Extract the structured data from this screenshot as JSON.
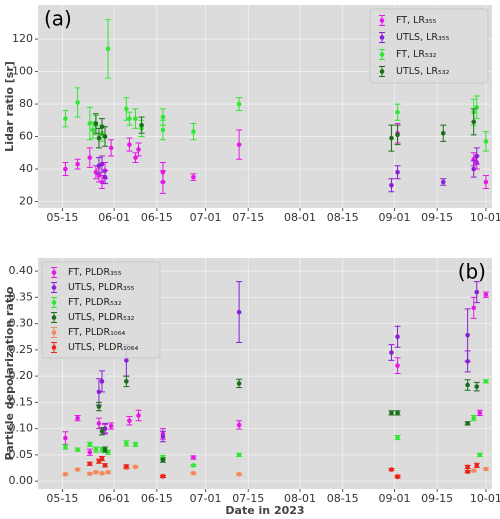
{
  "chart_data": [
    {
      "type": "scatter",
      "panel_label": "(a)",
      "ylabel": "Lidar ratio [sr]",
      "xlim": [
        "05-07",
        "10-03"
      ],
      "xticks": [
        "05-15",
        "06-01",
        "06-15",
        "07-01",
        "07-15",
        "08-01",
        "08-15",
        "09-01",
        "09-15",
        "10-01"
      ],
      "ylim": [
        16,
        141
      ],
      "yticks": [
        20,
        40,
        60,
        80,
        100,
        120
      ],
      "grid": true,
      "legend": "upper right",
      "series": [
        {
          "name": "FT, LR₃₅₅",
          "color": "#e619e6",
          "x": [
            "05-16",
            "05-20",
            "05-24",
            "05-26",
            "05-27",
            "05-28",
            "05-29",
            "05-31",
            "06-06",
            "06-08",
            "06-09",
            "06-17",
            "06-17",
            "06-27",
            "07-12",
            "09-02",
            "09-27",
            "09-28",
            "10-01"
          ],
          "values": [
            40,
            43,
            47,
            38,
            36,
            32,
            39,
            53,
            55,
            47,
            52,
            38,
            32,
            35,
            55,
            62,
            46,
            44,
            32
          ],
          "errors": [
            4,
            3,
            6,
            4,
            4,
            4,
            5,
            5,
            4,
            3,
            4,
            6,
            7,
            2,
            9,
            6,
            4,
            4,
            4
          ]
        },
        {
          "name": "UTLS, LR₃₅₅",
          "color": "#8a1fd6",
          "x": [
            "05-27",
            "05-28",
            "05-29",
            "08-31",
            "09-02",
            "09-17",
            "09-27",
            "09-28"
          ],
          "values": [
            42,
            43,
            35,
            30,
            38,
            32,
            40,
            48
          ],
          "errors": [
            5,
            5,
            4,
            4,
            4,
            2,
            5,
            5
          ]
        },
        {
          "name": "FT, LR₅₃₂",
          "color": "#33e633",
          "x": [
            "05-16",
            "05-20",
            "05-24",
            "05-25",
            "05-26",
            "05-28",
            "05-30",
            "06-05",
            "06-06",
            "06-08",
            "06-10",
            "06-17",
            "06-17",
            "06-27",
            "07-12",
            "09-02",
            "09-27",
            "09-28",
            "10-01"
          ],
          "values": [
            71,
            81,
            68,
            64,
            67,
            62,
            114,
            77,
            71,
            71,
            65,
            72,
            64,
            63,
            80,
            75,
            75,
            78,
            57
          ],
          "errors": [
            5,
            9,
            10,
            5,
            6,
            5,
            18,
            7,
            4,
            6,
            5,
            5,
            6,
            5,
            4,
            5,
            8,
            7,
            6
          ]
        },
        {
          "name": "UTLS, LR₅₃₂",
          "color": "#1a6e1a",
          "x": [
            "05-26",
            "05-27",
            "05-28",
            "05-29",
            "06-10",
            "08-31",
            "09-02",
            "09-17",
            "09-27"
          ],
          "values": [
            68,
            59,
            66,
            60,
            67,
            59,
            61,
            62,
            69
          ],
          "errors": [
            6,
            6,
            5,
            6,
            5,
            8,
            6,
            5,
            8
          ]
        }
      ]
    },
    {
      "type": "scatter",
      "panel_label": "(b)",
      "ylabel": "Particle depolarization ratio",
      "xlabel": "Date in 2023",
      "xlim": [
        "05-07",
        "10-03"
      ],
      "xticks": [
        "05-15",
        "06-01",
        "06-15",
        "07-01",
        "07-15",
        "08-01",
        "08-15",
        "09-01",
        "09-15",
        "10-01"
      ],
      "ylim": [
        -0.015,
        0.425
      ],
      "yticks": [
        {
          "value": 0,
          "label": "0.00"
        },
        {
          "value": 0.05,
          "label": "0.05"
        },
        {
          "value": 0.1,
          "label": "0.10"
        },
        {
          "value": 0.15,
          "label": "0.15"
        },
        {
          "value": 0.2,
          "label": "0.20"
        },
        {
          "value": 0.25,
          "label": "0.25"
        },
        {
          "value": 0.3,
          "label": "0.30"
        },
        {
          "value": 0.35,
          "label": "0.35"
        },
        {
          "value": 0.4,
          "label": "0.40"
        }
      ],
      "grid": true,
      "legend": "upper left",
      "series": [
        {
          "name": "FT, PLDR₃₅₅",
          "color": "#e619e6",
          "x": [
            "05-16",
            "05-20",
            "05-24",
            "05-27",
            "05-29",
            "05-31",
            "06-06",
            "06-09",
            "06-17",
            "06-27",
            "07-12",
            "09-02",
            "09-27",
            "09-29",
            "10-01"
          ],
          "values": [
            0.082,
            0.12,
            0.055,
            0.11,
            0.1,
            0.105,
            0.115,
            0.125,
            0.09,
            0.045,
            0.107,
            0.22,
            0.33,
            0.13,
            0.355
          ],
          "errors": [
            0.012,
            0.005,
            0.006,
            0.01,
            0.008,
            0.006,
            0.008,
            0.01,
            0.01,
            0.003,
            0.008,
            0.015,
            0.02,
            0.005,
            0.005
          ]
        },
        {
          "name": "UTLS, PLDR₃₅₅",
          "color": "#8a1fd6",
          "x": [
            "05-27",
            "05-28",
            "05-29",
            "06-05",
            "06-17",
            "07-12",
            "08-31",
            "09-02",
            "09-25",
            "09-25",
            "09-28"
          ],
          "values": [
            0.17,
            0.19,
            0.1,
            0.23,
            0.085,
            0.322,
            0.245,
            0.275,
            0.228,
            0.278,
            0.36
          ],
          "errors": [
            0.025,
            0.02,
            0.01,
            0.03,
            0.01,
            0.058,
            0.015,
            0.02,
            0.02,
            0.05,
            0.02
          ]
        },
        {
          "name": "FT, PLDR₅₃₂",
          "color": "#33e633",
          "x": [
            "05-16",
            "05-20",
            "05-24",
            "05-26",
            "05-28",
            "05-30",
            "06-05",
            "06-08",
            "06-17",
            "06-27",
            "07-12",
            "09-02",
            "09-27",
            "09-29",
            "10-01"
          ],
          "values": [
            0.065,
            0.06,
            0.07,
            0.06,
            0.06,
            0.055,
            0.072,
            0.07,
            0.045,
            0.03,
            0.05,
            0.083,
            0.12,
            0.05,
            0.19
          ],
          "errors": [
            0.004,
            0.003,
            0.004,
            0.005,
            0.004,
            0.004,
            0.005,
            0.004,
            0.004,
            0.002,
            0.003,
            0.004,
            0.005,
            0.003,
            0.003
          ]
        },
        {
          "name": "UTLS, PLDR₅₃₂",
          "color": "#1a6e1a",
          "x": [
            "05-27",
            "05-28",
            "05-29",
            "06-05",
            "06-17",
            "07-12",
            "08-31",
            "09-02",
            "09-25",
            "09-25",
            "09-28"
          ],
          "values": [
            0.142,
            0.095,
            0.06,
            0.19,
            0.04,
            0.186,
            0.13,
            0.13,
            0.11,
            0.183,
            0.18
          ],
          "errors": [
            0.008,
            0.007,
            0.005,
            0.01,
            0.004,
            0.008,
            0.004,
            0.004,
            0.003,
            0.01,
            0.008
          ]
        },
        {
          "name": "FT, PLDR₁₀₆₄",
          "color": "#f4885a",
          "x": [
            "05-16",
            "05-20",
            "05-24",
            "05-26",
            "05-28",
            "05-30",
            "06-05",
            "06-08",
            "06-17",
            "06-27",
            "07-12",
            "09-02",
            "09-27",
            "10-01"
          ],
          "values": [
            0.013,
            0.022,
            0.014,
            0.017,
            0.015,
            0.017,
            0.025,
            0.027,
            0.01,
            0.015,
            0.013,
            0.01,
            0.02,
            0.023
          ],
          "errors": [
            0.002,
            0.002,
            0.002,
            0.002,
            0.002,
            0.002,
            0.002,
            0.002,
            0.002,
            0.002,
            0.002,
            0.002,
            0.002,
            0.002
          ]
        },
        {
          "name": "UTLS, PLDR₁₀₆₄",
          "color": "#e8241a",
          "x": [
            "05-24",
            "05-27",
            "05-28",
            "05-29",
            "06-05",
            "06-17",
            "08-31",
            "09-02",
            "09-25",
            "09-25",
            "09-28"
          ],
          "values": [
            0.033,
            0.038,
            0.043,
            0.03,
            0.028,
            0.009,
            0.022,
            0.008,
            0.018,
            0.027,
            0.03
          ],
          "errors": [
            0.003,
            0.004,
            0.004,
            0.003,
            0.003,
            0.002,
            0.002,
            0.002,
            0.002,
            0.003,
            0.004
          ]
        }
      ]
    }
  ]
}
